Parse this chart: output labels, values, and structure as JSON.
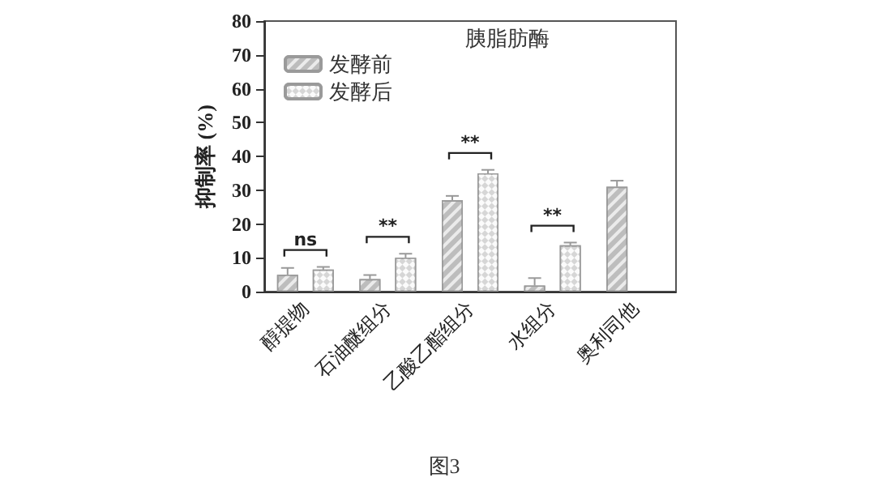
{
  "chart_data": {
    "type": "bar",
    "title": "胰脂肪酶",
    "ylabel": "抑制率 (%)",
    "categories": [
      "醇提物",
      "石油醚组分",
      "乙酸乙酯组分",
      "水组分",
      "奥利司他"
    ],
    "series": [
      {
        "name": "发酵前",
        "color": "#bdbdbd",
        "values": [
          5,
          3.7,
          27,
          1.8,
          31
        ],
        "errors": [
          [
            5,
            7
          ],
          [
            3.7,
            4.9
          ],
          [
            27,
            28.3
          ],
          [
            1.8,
            4
          ],
          [
            31,
            32.8
          ]
        ]
      },
      {
        "name": "发酵后",
        "color": "#d6d6d6",
        "values": [
          6.5,
          10,
          35,
          13.7,
          null
        ],
        "errors": [
          [
            6.5,
            7.3
          ],
          [
            10,
            11.2
          ],
          [
            35,
            36
          ],
          [
            13.7,
            14.5
          ],
          null
        ]
      }
    ],
    "ylim": [
      0,
      80
    ],
    "yticks": [
      0,
      10,
      20,
      30,
      40,
      50,
      60,
      70,
      80
    ],
    "grid": false,
    "legend": "top left",
    "annotations": [
      "ns",
      "**",
      "**",
      "**",
      "图3"
    ]
  }
}
